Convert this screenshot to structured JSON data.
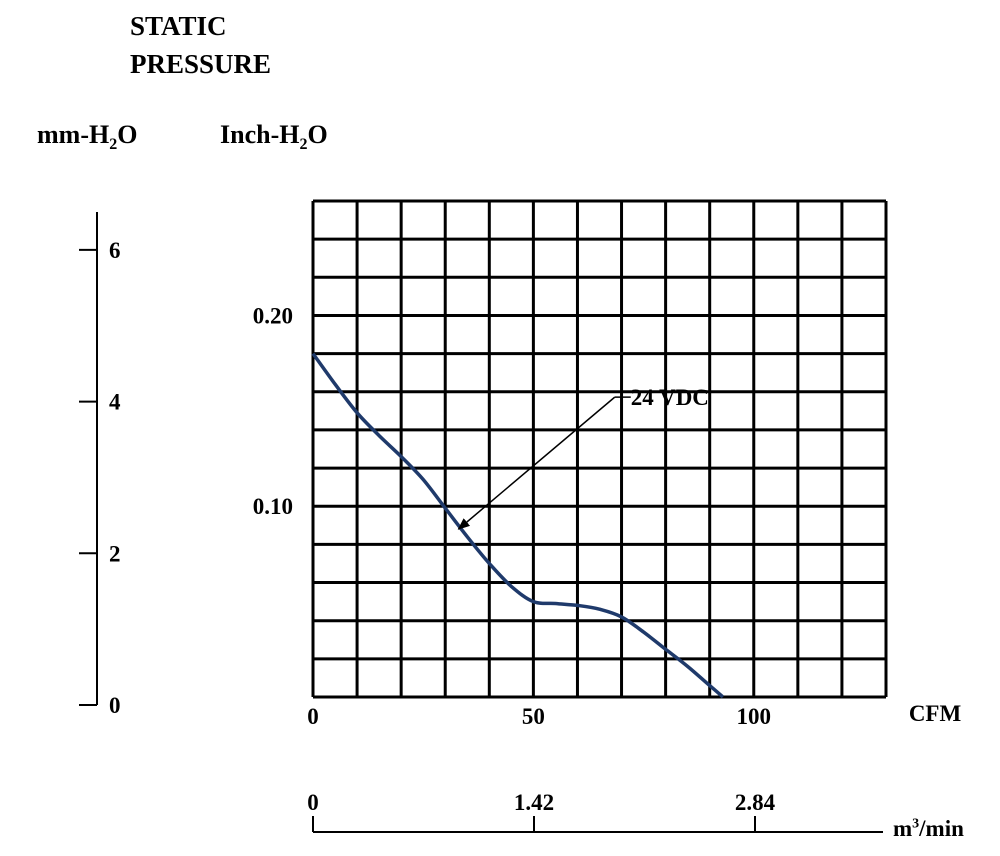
{
  "title_lines": [
    "STATIC",
    "PRESSURE"
  ],
  "left_unit": {
    "pre": "mm-H",
    "sub": "2",
    "post": "O"
  },
  "inner_unit": {
    "pre": "Inch-H",
    "sub": "2",
    "post": "O"
  },
  "bottom_unit": {
    "pre": "m",
    "sup": "3",
    "post": "/min"
  },
  "chart_data": {
    "type": "line",
    "xlabel": "CFM",
    "ylabel": "",
    "xlim": [
      0,
      130
    ],
    "ylim": [
      0,
      0.26
    ],
    "x_ticks": [
      "0",
      "50",
      "100"
    ],
    "x_tick_values": [
      0,
      50,
      100
    ],
    "y_ticks": [
      "0.10",
      "0.20"
    ],
    "y_tick_values": [
      0.1,
      0.2
    ],
    "y2_ticks": [
      "0",
      "2",
      "4",
      "6"
    ],
    "y2_tick_values": [
      0,
      2,
      4,
      6
    ],
    "y2_unit": "mm-H2O",
    "x2_ticks": [
      "0",
      "1.42",
      "2.84"
    ],
    "x2_tick_values": [
      0,
      1.42,
      2.84
    ],
    "x2_unit": "m3/min",
    "grid": true,
    "series": [
      {
        "name": "24 VDC",
        "color": "#1f3a6b",
        "x": [
          0,
          5,
          10,
          15,
          20,
          25,
          30,
          35,
          40,
          45,
          50,
          55,
          60,
          65,
          70,
          75,
          80,
          85,
          90,
          93
        ],
        "y": [
          0.18,
          0.164,
          0.149,
          0.137,
          0.126,
          0.114,
          0.099,
          0.084,
          0.07,
          0.058,
          0.05,
          0.049,
          0.048,
          0.046,
          0.042,
          0.034,
          0.025,
          0.016,
          0.006,
          0.0
        ]
      }
    ],
    "annotations": [
      {
        "text": "24 VDC",
        "x": 73,
        "y": 0.153,
        "arrow_to": [
          33,
          0.088
        ]
      }
    ]
  }
}
